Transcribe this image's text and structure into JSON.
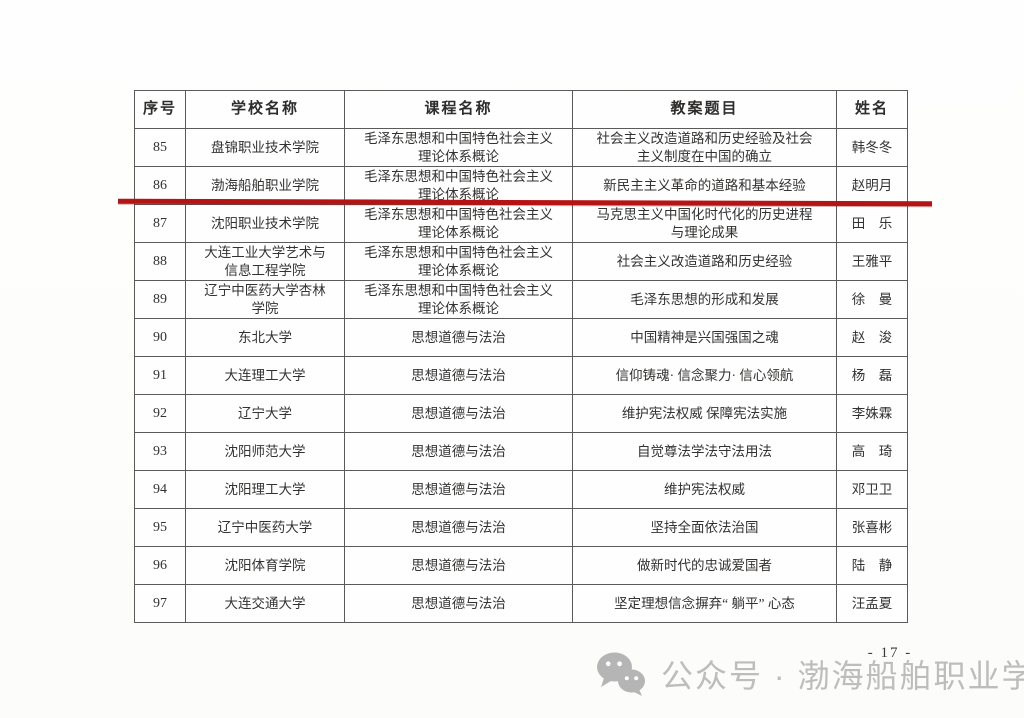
{
  "document": {
    "page_number": "- 17 -"
  },
  "table": {
    "headers": [
      "序号",
      "学校名称",
      "课程名称",
      "教案题目",
      "姓名"
    ],
    "rows": [
      {
        "no": "85",
        "school": "盘锦职业技术学院",
        "course": "毛泽东思想和中国特色社会主义\n理论体系概论",
        "title": "社会主义改造道路和历史经验及社会\n主义制度在中国的确立",
        "name": "韩冬冬"
      },
      {
        "no": "86",
        "school": "渤海船舶职业学院",
        "course": "毛泽东思想和中国特色社会主义\n理论体系概论",
        "title": "新民主主义革命的道路和基本经验",
        "name": "赵明月"
      },
      {
        "no": "87",
        "school": "沈阳职业技术学院",
        "course": "毛泽东思想和中国特色社会主义\n理论体系概论",
        "title": "马克思主义中国化时代化的历史进程\n与理论成果",
        "name": "田　乐"
      },
      {
        "no": "88",
        "school": "大连工业大学艺术与\n信息工程学院",
        "course": "毛泽东思想和中国特色社会主义\n理论体系概论",
        "title": "社会主义改造道路和历史经验",
        "name": "王雅平"
      },
      {
        "no": "89",
        "school": "辽宁中医药大学杏林\n学院",
        "course": "毛泽东思想和中国特色社会主义\n理论体系概论",
        "title": "毛泽东思想的形成和发展",
        "name": "徐　曼"
      },
      {
        "no": "90",
        "school": "东北大学",
        "course": "思想道德与法治",
        "title": "中国精神是兴国强国之魂",
        "name": "赵　浚"
      },
      {
        "no": "91",
        "school": "大连理工大学",
        "course": "思想道德与法治",
        "title": "信仰铸魂· 信念聚力· 信心领航",
        "name": "杨　磊"
      },
      {
        "no": "92",
        "school": "辽宁大学",
        "course": "思想道德与法治",
        "title": "维护宪法权威 保障宪法实施",
        "name": "李姝霖"
      },
      {
        "no": "93",
        "school": "沈阳师范大学",
        "course": "思想道德与法治",
        "title": "自觉尊法学法守法用法",
        "name": "高　琦"
      },
      {
        "no": "94",
        "school": "沈阳理工大学",
        "course": "思想道德与法治",
        "title": "维护宪法权威",
        "name": "邓卫卫"
      },
      {
        "no": "95",
        "school": "辽宁中医药大学",
        "course": "思想道德与法治",
        "title": "坚持全面依法治国",
        "name": "张喜彬"
      },
      {
        "no": "96",
        "school": "沈阳体育学院",
        "course": "思想道德与法治",
        "title": "做新时代的忠诚爱国者",
        "name": "陆　静"
      },
      {
        "no": "97",
        "school": "大连交通大学",
        "course": "思想道德与法治",
        "title": "坚定理想信念摒弃“ 躺平” 心态",
        "name": "汪孟夏"
      }
    ]
  },
  "annotation": {
    "type": "red-underline",
    "marks_row_no": "86",
    "color": "#b41414"
  },
  "watermark": {
    "icon": "wechat-icon",
    "text": "公众号 · 渤海船舶职业学院",
    "color": "#b2b2b2"
  }
}
